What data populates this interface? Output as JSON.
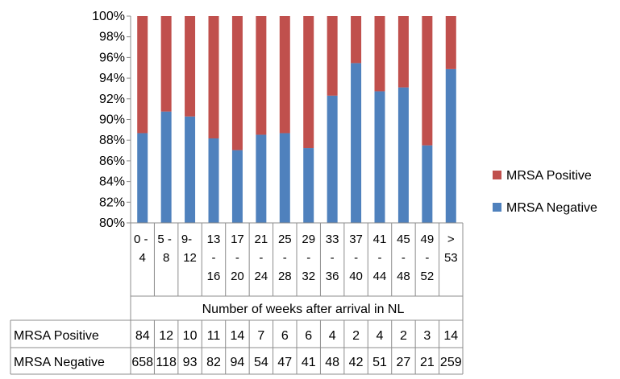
{
  "chart_data": {
    "type": "bar",
    "stacked": "percent",
    "title": "",
    "xlabel": "Number of weeks after arrival in NL",
    "ylabel": "",
    "ylim": [
      0.8,
      1.0
    ],
    "y_ticks": [
      "80%",
      "82%",
      "84%",
      "86%",
      "88%",
      "90%",
      "92%",
      "94%",
      "96%",
      "98%",
      "100%"
    ],
    "grid": false,
    "legend": "right",
    "categories": [
      [
        "0 -",
        "4"
      ],
      [
        "5 -",
        "8"
      ],
      [
        "9-",
        "12"
      ],
      [
        "13",
        "-",
        "16"
      ],
      [
        "17",
        "-",
        "20"
      ],
      [
        "21",
        "-",
        "24"
      ],
      [
        "25",
        "-",
        "28"
      ],
      [
        "29",
        "-",
        "32"
      ],
      [
        "33",
        "-",
        "36"
      ],
      [
        "37",
        "-",
        "40"
      ],
      [
        "41",
        "-",
        "44"
      ],
      [
        "45",
        "-",
        "48"
      ],
      [
        "49",
        "-",
        "52"
      ],
      [
        ">",
        "53"
      ]
    ],
    "series": [
      {
        "name": "MRSA Positive",
        "color": "#c0504d",
        "values": [
          84,
          12,
          10,
          11,
          14,
          7,
          6,
          6,
          4,
          2,
          4,
          2,
          3,
          14
        ]
      },
      {
        "name": "MRSA Negative",
        "color": "#4f81bd",
        "values": [
          658,
          118,
          93,
          82,
          94,
          54,
          47,
          41,
          48,
          42,
          51,
          27,
          21,
          259
        ]
      }
    ],
    "data_table": [
      {
        "label": "MRSA Positive",
        "cells": [
          "84",
          "12",
          "10",
          "11",
          "14",
          "7",
          "6",
          "6",
          "4",
          "2",
          "4",
          "2",
          "3",
          "14"
        ]
      },
      {
        "label": "MRSA Negative",
        "cells": [
          "658",
          "118",
          "93",
          "82",
          "94",
          "54",
          "47",
          "41",
          "48",
          "42",
          "51",
          "27",
          "21",
          "259"
        ]
      }
    ],
    "legend_order": [
      "MRSA Positive",
      "MRSA Negative"
    ]
  }
}
